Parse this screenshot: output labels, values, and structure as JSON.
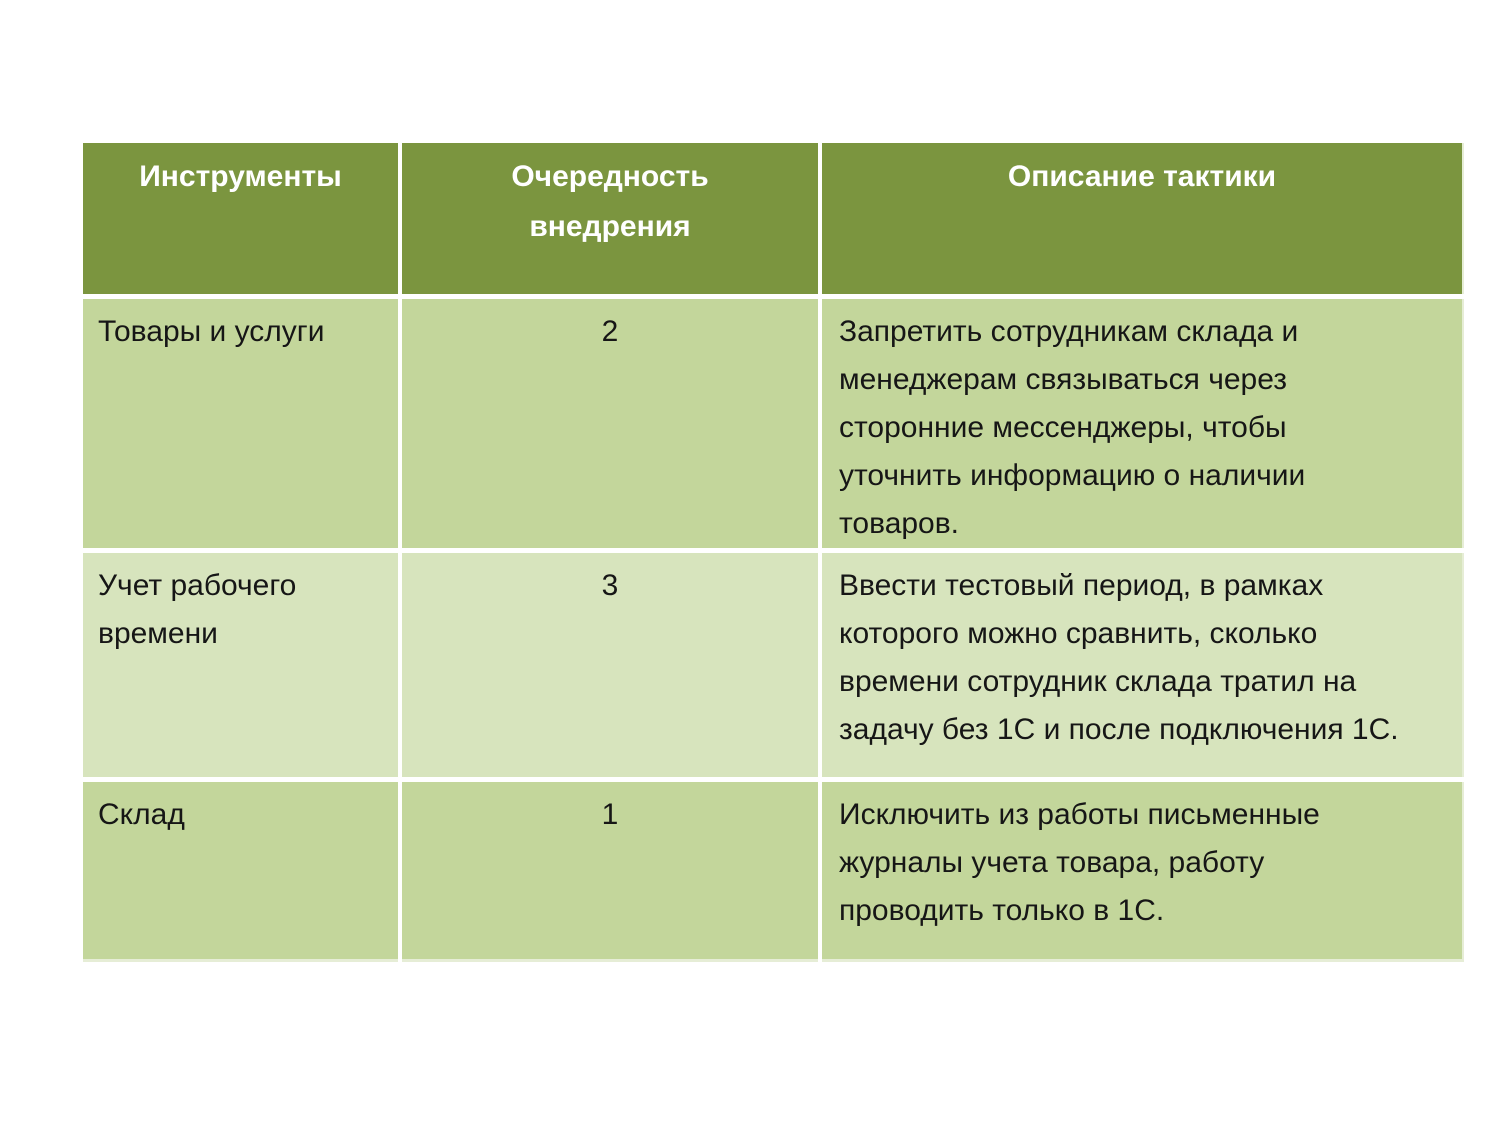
{
  "table": {
    "columns": [
      {
        "label": "Инструменты"
      },
      {
        "label": "Очередность внедрения"
      },
      {
        "label": "Описание тактики"
      }
    ],
    "rows": [
      {
        "tool": "Товары и услуги",
        "order": "2",
        "tactic": "Запретить сотрудникам склада и менеджерам связываться через сторонние мессенджеры, чтобы уточнить информацию о наличии товаров."
      },
      {
        "tool": "Учет рабочего времени",
        "order": "3",
        "tactic": "Ввести тестовый период, в рамках которого можно сравнить, сколько времени сотрудник склада тратил на задачу без 1С и после подключения 1С."
      },
      {
        "tool": "Склад",
        "order": "1",
        "tactic": "Исключить из работы письменные журналы учета товара, работу проводить только в 1С."
      }
    ],
    "colors": {
      "page_bg": "#FFFFFF",
      "header_bg": "#7B953F",
      "header_text": "#FFFFFF",
      "row_band_a": "#C3D69B",
      "row_band_b": "#D7E4BD",
      "body_text": "#161616",
      "divider": "#FFFFFF",
      "edge_tint": "#E6EDD6"
    }
  }
}
